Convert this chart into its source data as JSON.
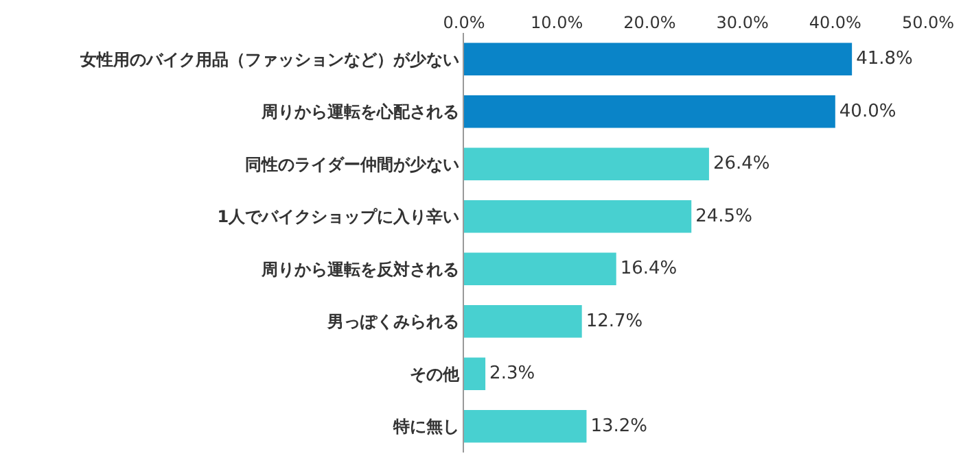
{
  "chart_data": {
    "type": "bar",
    "orientation": "horizontal",
    "categories": [
      "女性用のバイク用品（ファッションなど）が少ない",
      "周りから運転を心配される",
      "同性のライダー仲間が少ない",
      "1人でバイクショップに入り辛い",
      "周りから運転を反対される",
      "男っぽくみられる",
      "その他",
      "特に無し"
    ],
    "values": [
      41.8,
      40.0,
      26.4,
      24.5,
      16.4,
      12.7,
      2.3,
      13.2
    ],
    "value_labels": [
      "41.8%",
      "40.0%",
      "26.4%",
      "24.5%",
      "16.4%",
      "12.7%",
      "2.3%",
      "13.2%"
    ],
    "colors": [
      "#0a84c8",
      "#0a84c8",
      "#48d0d0",
      "#48d0d0",
      "#48d0d0",
      "#48d0d0",
      "#48d0d0",
      "#48d0d0"
    ],
    "xlim": [
      0,
      50
    ],
    "xticks": [
      {
        "value": 0,
        "label": "0.0%"
      },
      {
        "value": 10,
        "label": "10.0%"
      },
      {
        "value": 20,
        "label": "20.0%"
      },
      {
        "value": 30,
        "label": "30.0%"
      },
      {
        "value": 40,
        "label": "40.0%"
      },
      {
        "value": 50,
        "label": "50.0%"
      }
    ],
    "legend": false
  }
}
